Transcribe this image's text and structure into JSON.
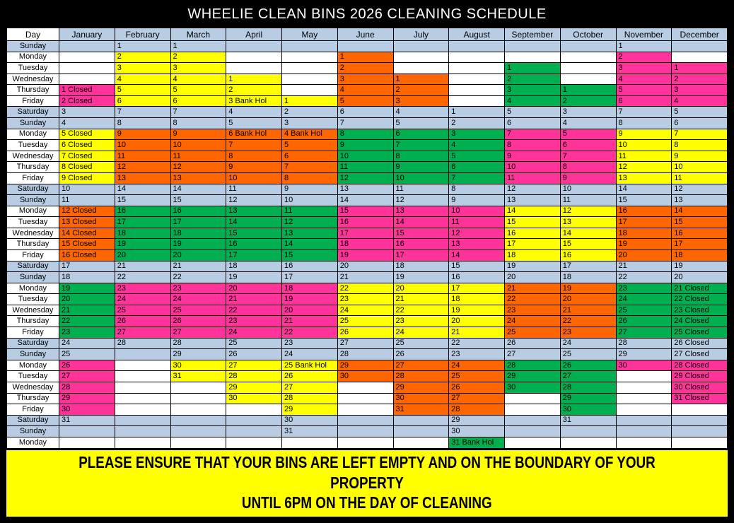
{
  "title": "WHEELIE CLEAN BINS 2026 CLEANING SCHEDULE",
  "footer": {
    "line1": "PLEASE ENSURE THAT YOUR BINS ARE LEFT EMPTY AND ON THE BOUNDARY OF YOUR PROPERTY",
    "line2": "UNTIL 6PM ON THE DAY OF CLEANING"
  },
  "colors": {
    "yellow": "#ffff00",
    "orange": "#ff6600",
    "green": "#00b050",
    "pink": "#ff3399",
    "weekend_blue": "#b8cce4",
    "title_bg": "#000000",
    "title_text": "#ffffff"
  },
  "cell_color_keys": {
    "y": "yellow",
    "o": "orange",
    "g": "green",
    "p": "pink",
    "": "default (white weekday / blue weekend)"
  },
  "table": {
    "day_header": "Day",
    "months": [
      "January",
      "February",
      "March",
      "April",
      "May",
      "June",
      "July",
      "August",
      "September",
      "October",
      "November",
      "December"
    ],
    "rows": [
      {
        "day": "Sunday",
        "weekend": true,
        "cells": [
          "",
          "1",
          "1",
          "",
          "",
          "",
          "",
          "",
          "",
          "",
          "1",
          ""
        ]
      },
      {
        "day": "Monday",
        "weekend": false,
        "cells": [
          "",
          "2|y",
          "2|y",
          "",
          "",
          "1|o",
          "",
          "",
          "",
          "",
          "2|p",
          ""
        ]
      },
      {
        "day": "Tuesday",
        "weekend": false,
        "cells": [
          "",
          "3|y",
          "3|y",
          "",
          "",
          "2|o",
          "",
          "",
          "1|g",
          "",
          "3|p",
          "1|p"
        ]
      },
      {
        "day": "Wednesday",
        "weekend": false,
        "cells": [
          "",
          "4|y",
          "4|y",
          "1|y",
          "",
          "3|o",
          "1|o",
          "",
          "2|g",
          "",
          "4|p",
          "2|p"
        ]
      },
      {
        "day": "Thursday",
        "weekend": false,
        "cells": [
          "1 Closed|p",
          "5|y",
          "5|y",
          "2|y",
          "",
          "4|o",
          "2|o",
          "",
          "3|g",
          "1|g",
          "5|p",
          "3|p"
        ]
      },
      {
        "day": "Friday",
        "weekend": false,
        "cells": [
          "2 Closed|p",
          "6|y",
          "6|y",
          "3 Bank Hol|y",
          "1|y",
          "5|o",
          "3|o",
          "",
          "4|g",
          "2|g",
          "6|p",
          "4|p"
        ]
      },
      {
        "day": "Saturday",
        "weekend": true,
        "cells": [
          "3",
          "7",
          "7",
          "4",
          "2",
          "6",
          "4",
          "1",
          "5",
          "3",
          "7",
          "5"
        ]
      },
      {
        "day": "Sunday",
        "weekend": true,
        "cells": [
          "4",
          "8",
          "8",
          "5",
          "3",
          "7",
          "5",
          "2",
          "6",
          "4",
          "8",
          "6"
        ]
      },
      {
        "day": "Monday",
        "weekend": false,
        "cells": [
          "5 Closed|y",
          "9|o",
          "9|o",
          "6 Bank Hol|o",
          "4 Bank Hol|o",
          "8|g",
          "6|g",
          "3|g",
          "7|p",
          "5|p",
          "9|y",
          "7|y"
        ]
      },
      {
        "day": "Tuesday",
        "weekend": false,
        "cells": [
          "6 Closed|y",
          "10|o",
          "10|o",
          "7|o",
          "5|o",
          "9|g",
          "7|g",
          "4|g",
          "8|p",
          "6|p",
          "10|y",
          "8|y"
        ]
      },
      {
        "day": "Wednesday",
        "weekend": false,
        "cells": [
          "7 Closed|y",
          "11|o",
          "11|o",
          "8|o",
          "6|o",
          "10|g",
          "8|g",
          "5|g",
          "9|p",
          "7|p",
          "11|y",
          "9|y"
        ]
      },
      {
        "day": "Thursday",
        "weekend": false,
        "cells": [
          "8 Closed|y",
          "12|o",
          "12|o",
          "9|o",
          "7|o",
          "11|g",
          "9|g",
          "6|g",
          "10|p",
          "8|p",
          "12|y",
          "10|y"
        ]
      },
      {
        "day": "Friday",
        "weekend": false,
        "cells": [
          "9 Closed|y",
          "13|o",
          "13|o",
          "10|o",
          "8|o",
          "12|g",
          "10|g",
          "7|g",
          "11|p",
          "9|p",
          "13|y",
          "11|y"
        ]
      },
      {
        "day": "Saturday",
        "weekend": true,
        "cells": [
          "10",
          "14",
          "14",
          "11",
          "9",
          "13",
          "11",
          "8",
          "12",
          "10",
          "14",
          "12"
        ]
      },
      {
        "day": "Sunday",
        "weekend": true,
        "cells": [
          "11",
          "15",
          "15",
          "12",
          "10",
          "14",
          "12",
          "9",
          "13",
          "11",
          "15",
          "13"
        ]
      },
      {
        "day": "Monday",
        "weekend": false,
        "cells": [
          "12 Closed|o",
          "16|g",
          "16|g",
          "13|g",
          "11|g",
          "15|p",
          "13|p",
          "10|p",
          "14|y",
          "12|y",
          "16|o",
          "14|o"
        ]
      },
      {
        "day": "Tuesday",
        "weekend": false,
        "cells": [
          "13 Closed|o",
          "17|g",
          "17|g",
          "14|g",
          "12|g",
          "16|p",
          "14|p",
          "11|p",
          "15|y",
          "13|y",
          "17|o",
          "15|o"
        ]
      },
      {
        "day": "Wednesday",
        "weekend": false,
        "cells": [
          "14 Closed|o",
          "18|g",
          "18|g",
          "15|g",
          "13|g",
          "17|p",
          "15|p",
          "12|p",
          "16|y",
          "14|y",
          "18|o",
          "16|o"
        ]
      },
      {
        "day": "Thursday",
        "weekend": false,
        "cells": [
          "15 Closed|o",
          "19|g",
          "19|g",
          "16|g",
          "14|g",
          "18|p",
          "16|p",
          "13|p",
          "17|y",
          "15|y",
          "19|o",
          "17|o"
        ]
      },
      {
        "day": "Friday",
        "weekend": false,
        "cells": [
          "16 Closed|o",
          "20|g",
          "20|g",
          "17|g",
          "15|g",
          "19|p",
          "17|p",
          "14|p",
          "18|y",
          "16|y",
          "20|o",
          "18|o"
        ]
      },
      {
        "day": "Saturday",
        "weekend": true,
        "cells": [
          "17",
          "21",
          "21",
          "18",
          "16",
          "20",
          "18",
          "15",
          "19",
          "17",
          "21",
          "19"
        ]
      },
      {
        "day": "Sunday",
        "weekend": true,
        "cells": [
          "18",
          "22",
          "22",
          "19",
          "17",
          "21",
          "19",
          "16",
          "20",
          "18",
          "22",
          "20"
        ]
      },
      {
        "day": "Monday",
        "weekend": false,
        "cells": [
          "19|g",
          "23|p",
          "23|p",
          "20|p",
          "18|p",
          "22|y",
          "20|y",
          "17|y",
          "21|o",
          "19|o",
          "23|g",
          "21 Closed|g"
        ]
      },
      {
        "day": "Tuesday",
        "weekend": false,
        "cells": [
          "20|g",
          "24|p",
          "24|p",
          "21|p",
          "19|p",
          "23|y",
          "21|y",
          "18|y",
          "22|o",
          "20|o",
          "24|g",
          "22 Closed|g"
        ]
      },
      {
        "day": "Wednesday",
        "weekend": false,
        "cells": [
          "21|g",
          "25|p",
          "25|p",
          "22|p",
          "20|p",
          "24|y",
          "22|y",
          "19|y",
          "23|o",
          "21|o",
          "25|g",
          "23 Closed|g"
        ]
      },
      {
        "day": "Thursday",
        "weekend": false,
        "cells": [
          "22|g",
          "26|p",
          "26|p",
          "23|p",
          "21|p",
          "25|y",
          "23|y",
          "20|y",
          "24|o",
          "22|o",
          "26|g",
          "24 Closed|g"
        ]
      },
      {
        "day": "Friday",
        "weekend": false,
        "cells": [
          "23|g",
          "27|p",
          "27|p",
          "24|p",
          "22|p",
          "26|y",
          "24|y",
          "21|y",
          "25|o",
          "23|o",
          "27|g",
          "25 Closed|g"
        ]
      },
      {
        "day": "Saturday",
        "weekend": true,
        "cells": [
          "24",
          "28",
          "28",
          "25",
          "23",
          "27",
          "25",
          "22",
          "26",
          "24",
          "28",
          "26 Closed"
        ]
      },
      {
        "day": "Sunday",
        "weekend": true,
        "cells": [
          "25",
          "",
          "29",
          "26",
          "24",
          "28",
          "26",
          "23",
          "27",
          "25",
          "29",
          "27 Closed"
        ]
      },
      {
        "day": "Monday",
        "weekend": false,
        "cells": [
          "26|p",
          "",
          "30|y",
          "27|y",
          "25 Bank Hol|y",
          "29|o",
          "27|o",
          "24|o",
          "28|g",
          "26|g",
          "30|p",
          "28 Closed|p"
        ]
      },
      {
        "day": "Tuesday",
        "weekend": false,
        "cells": [
          "27|p",
          "",
          "31|y",
          "28|y",
          "26|y",
          "30|o",
          "28|o",
          "25|o",
          "29|g",
          "27|g",
          "",
          "29 Closed|p"
        ]
      },
      {
        "day": "Wednesday",
        "weekend": false,
        "cells": [
          "28|p",
          "",
          "",
          "29|y",
          "27|y",
          "",
          "29|o",
          "26|o",
          "30|g",
          "28|g",
          "",
          "30 Closed|p"
        ]
      },
      {
        "day": "Thursday",
        "weekend": false,
        "cells": [
          "29|p",
          "",
          "",
          "30|y",
          "28|y",
          "",
          "30|o",
          "27|o",
          "",
          "29|g",
          "",
          "31 Closed|p"
        ]
      },
      {
        "day": "Friday",
        "weekend": false,
        "cells": [
          "30|p",
          "",
          "",
          "",
          "29|y",
          "",
          "31|o",
          "28|o",
          "",
          "30|g",
          "",
          ""
        ]
      },
      {
        "day": "Saturday",
        "weekend": true,
        "cells": [
          "31",
          "",
          "",
          "",
          "30",
          "",
          "",
          "29",
          "",
          "31",
          "",
          ""
        ]
      },
      {
        "day": "Sunday",
        "weekend": true,
        "cells": [
          "",
          "",
          "",
          "",
          "31",
          "",
          "",
          "30",
          "",
          "",
          "",
          ""
        ]
      },
      {
        "day": "Monday",
        "weekend": false,
        "cells": [
          "",
          "",
          "",
          "",
          "",
          "",
          "",
          "31 Bank Hol|g",
          "",
          "",
          "",
          ""
        ]
      }
    ]
  }
}
